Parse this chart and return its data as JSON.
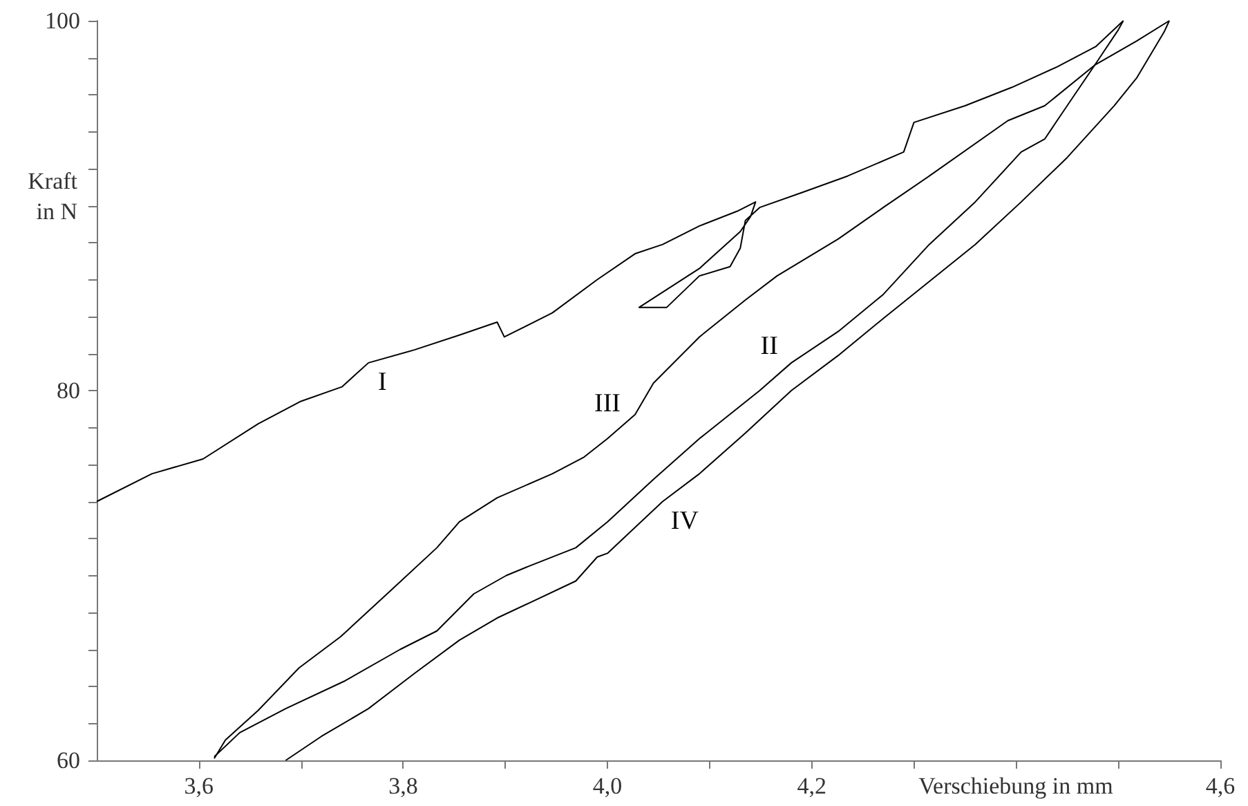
{
  "chart_data": {
    "type": "line",
    "xlabel": "Verschiebung in mm",
    "ylabel": "Kraft\nin N",
    "xlim": [
      3.5,
      4.6
    ],
    "ylim": [
      60,
      100
    ],
    "xticks": [
      {
        "value": 3.6,
        "label": "3,6"
      },
      {
        "value": 3.7,
        "label": null
      },
      {
        "value": 3.8,
        "label": "3,8"
      },
      {
        "value": 3.9,
        "label": null
      },
      {
        "value": 4.0,
        "label": "4,0"
      },
      {
        "value": 4.1,
        "label": null
      },
      {
        "value": 4.2,
        "label": "4,2"
      },
      {
        "value": 4.3,
        "label": null
      },
      {
        "value": 4.4,
        "label": null
      },
      {
        "value": 4.5,
        "label": null
      },
      {
        "value": 4.6,
        "label": "4,6"
      }
    ],
    "yticks": [
      60,
      {
        "value": 62,
        "label": null
      },
      {
        "value": 64,
        "label": null
      },
      {
        "value": 66,
        "label": null
      },
      {
        "value": 68,
        "label": null
      },
      {
        "value": 70,
        "label": null
      },
      {
        "value": 72,
        "label": null
      },
      {
        "value": 74,
        "label": null
      },
      {
        "value": 76,
        "label": null
      },
      {
        "value": 78,
        "label": null
      },
      80,
      {
        "value": 82,
        "label": null
      },
      {
        "value": 84,
        "label": null
      },
      {
        "value": 86,
        "label": null
      },
      {
        "value": 88,
        "label": null
      },
      {
        "value": 90,
        "label": null
      },
      {
        "value": 92,
        "label": null
      },
      {
        "value": 94,
        "label": null
      },
      {
        "value": 96,
        "label": null
      },
      {
        "value": 98,
        "label": null
      },
      100
    ],
    "grid": false,
    "marker": "none",
    "line_style": "solid",
    "series": [
      {
        "color": "#000000",
        "x": [
          3.5,
          3.554,
          3.604,
          3.658,
          3.699,
          3.74,
          3.766,
          3.811,
          3.855,
          3.892,
          3.899,
          3.946,
          3.99,
          4.027,
          4.054,
          4.09,
          4.127,
          4.145,
          4.14,
          4.13,
          4.09,
          4.031,
          4.058,
          4.09,
          4.12,
          4.13,
          4.135,
          4.149,
          4.19,
          4.235,
          4.29,
          4.3,
          4.35,
          4.396,
          4.44,
          4.478,
          4.505
        ],
        "values": [
          74.0,
          75.5,
          76.3,
          78.2,
          79.4,
          80.2,
          81.5,
          82.2,
          83.0,
          83.7,
          82.9,
          84.2,
          86.0,
          87.4,
          87.9,
          88.9,
          89.7,
          90.2,
          89.4,
          88.6,
          86.6,
          84.5,
          84.5,
          86.2,
          86.7,
          87.7,
          89.2,
          89.9,
          90.7,
          91.6,
          92.9,
          94.5,
          95.4,
          96.4,
          97.5,
          98.6,
          100
        ]
      },
      {
        "color": "#000000",
        "x": [
          4.505,
          4.5,
          4.477,
          4.45,
          4.428,
          4.405,
          4.36,
          4.315,
          4.27,
          4.226,
          4.18,
          4.149,
          4.09,
          4.045,
          4.0,
          3.969,
          3.923,
          3.901,
          3.869,
          3.833,
          3.797,
          3.743,
          3.685,
          3.64,
          3.615
        ],
        "values": [
          100,
          99.5,
          97.6,
          95.4,
          93.6,
          92.9,
          90.2,
          87.9,
          85.2,
          83.2,
          81.5,
          80.0,
          77.4,
          75.2,
          72.9,
          71.5,
          70.5,
          70.0,
          69.0,
          67.0,
          66.0,
          64.3,
          62.8,
          61.5,
          60.2
        ]
      },
      {
        "color": "#000000",
        "x": [
          3.615,
          3.626,
          3.658,
          3.698,
          3.739,
          3.788,
          3.833,
          3.855,
          3.892,
          3.946,
          3.977,
          4.0,
          4.027,
          4.045,
          4.09,
          4.135,
          4.166,
          4.226,
          4.27,
          4.315,
          4.392,
          4.428,
          4.477,
          4.518,
          4.55
        ],
        "values": [
          60.1,
          61.1,
          62.7,
          65.0,
          66.7,
          69.2,
          71.5,
          72.9,
          74.2,
          75.5,
          76.4,
          77.4,
          78.7,
          80.4,
          82.9,
          84.9,
          86.2,
          88.2,
          89.9,
          91.6,
          94.6,
          95.4,
          97.6,
          98.9,
          100
        ]
      },
      {
        "color": "#000000",
        "x": [
          4.55,
          4.545,
          4.518,
          4.496,
          4.45,
          4.405,
          4.36,
          4.315,
          4.27,
          4.226,
          4.18,
          4.135,
          4.09,
          4.054,
          4.0,
          3.99,
          3.969,
          3.923,
          3.892,
          3.855,
          3.811,
          3.766,
          3.72,
          3.685
        ],
        "values": [
          100,
          99.4,
          96.9,
          95.4,
          92.6,
          90.2,
          87.9,
          85.9,
          83.9,
          81.9,
          80.0,
          77.7,
          75.5,
          74.0,
          71.2,
          71.0,
          69.7,
          68.5,
          67.7,
          66.5,
          64.7,
          62.8,
          61.3,
          60.0
        ]
      }
    ],
    "annotations": [
      {
        "text": "I",
        "x": 3.766,
        "y": 81.5
      },
      {
        "text": "II",
        "x": 4.18,
        "y": 81.5
      },
      {
        "text": "III",
        "x": 4.027,
        "y": 78.7
      },
      {
        "text": "IV",
        "x": 4.054,
        "y": 74.0
      }
    ]
  }
}
